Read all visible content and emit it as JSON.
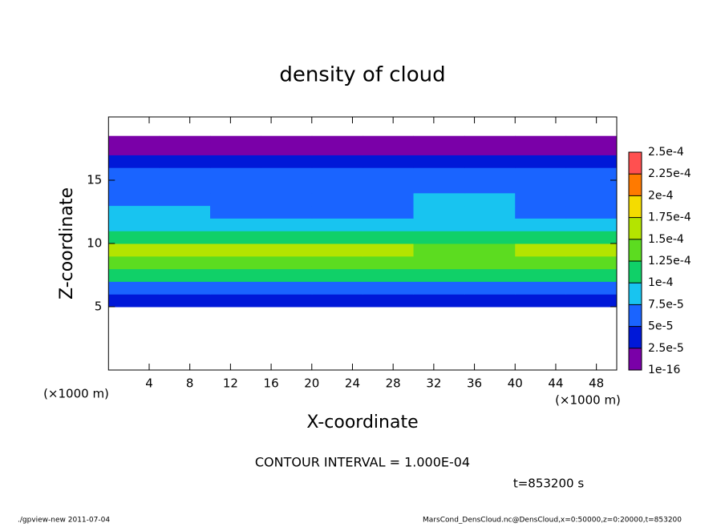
{
  "chart_data": {
    "type": "heatmap",
    "title": "density of cloud",
    "xlabel": "X-coordinate",
    "ylabel": "Z-coordinate",
    "x_unit": "(×1000 m)",
    "y_unit": "(×1000 m)",
    "contour_note": "CONTOUR INTERVAL = 1.000E-04",
    "time_note": "t=853200 s",
    "footer_left": "./gpview-new  2011-07-04",
    "footer_right": "MarsCond_DensCloud.nc@DensCloud,x=0:50000,z=0:20000,t=853200",
    "xlim": [
      0,
      50
    ],
    "xticks": [
      4,
      8,
      12,
      16,
      20,
      24,
      28,
      32,
      36,
      40,
      44,
      48
    ],
    "ylim": [
      0,
      20
    ],
    "yticks": [
      5,
      10,
      15
    ],
    "xbins": [
      0,
      5,
      10,
      15,
      20,
      25,
      30,
      35,
      40,
      45,
      50
    ],
    "ybins": [
      5,
      6,
      7,
      8,
      9,
      10,
      11,
      12,
      13,
      14,
      15,
      16,
      17,
      18,
      18.5
    ],
    "values": [
      [
        3e-05,
        3e-05,
        3e-05,
        3e-05,
        3e-05,
        3e-05,
        3e-05,
        3e-05,
        3e-05,
        3e-05
      ],
      [
        7e-05,
        7e-05,
        7e-05,
        7e-05,
        7e-05,
        7e-05,
        7e-05,
        7e-05,
        7e-05,
        7e-05
      ],
      [
        0.000115,
        0.000115,
        0.000115,
        0.000115,
        0.000115,
        0.000115,
        0.000115,
        0.000115,
        0.000115,
        0.000115
      ],
      [
        0.000145,
        0.000145,
        0.000145,
        0.000145,
        0.000145,
        0.000145,
        0.000145,
        0.000145,
        0.000145,
        0.000145
      ],
      [
        0.000155,
        0.000155,
        0.000155,
        0.00017,
        0.000155,
        0.00017,
        0.00013,
        0.00013,
        0.000155,
        0.000155
      ],
      [
        0.00012,
        0.00012,
        0.00012,
        0.00012,
        0.00012,
        0.00012,
        0.00011,
        0.00011,
        0.00012,
        0.00012
      ],
      [
        8e-05,
        8e-05,
        8e-05,
        8e-05,
        8e-05,
        8e-05,
        9e-05,
        9e-05,
        8e-05,
        8e-05
      ],
      [
        8e-05,
        8e-05,
        6.5e-05,
        6.5e-05,
        6.5e-05,
        6.5e-05,
        8.5e-05,
        8.5e-05,
        6.5e-05,
        6.5e-05
      ],
      [
        6e-05,
        6e-05,
        6e-05,
        6e-05,
        6e-05,
        6e-05,
        8e-05,
        8e-05,
        6e-05,
        6e-05
      ],
      [
        5.5e-05,
        5.5e-05,
        5.5e-05,
        5.5e-05,
        5.5e-05,
        5.5e-05,
        5.5e-05,
        5.5e-05,
        5.5e-05,
        5.5e-05
      ],
      [
        5e-05,
        5e-05,
        5e-05,
        5e-05,
        5e-05,
        5e-05,
        5e-05,
        5e-05,
        5e-05,
        5e-05
      ],
      [
        3e-05,
        3e-05,
        3e-05,
        3e-05,
        3e-05,
        3e-05,
        3e-05,
        3e-05,
        3e-05,
        3e-05
      ],
      [
        1e-05,
        1e-05,
        1e-05,
        1e-05,
        1e-05,
        1e-05,
        1e-05,
        1e-05,
        1e-05,
        1e-05
      ],
      [
        1e-05,
        1e-05,
        1e-05,
        1e-05,
        1e-05,
        1e-05,
        1e-05,
        1e-05,
        1e-05,
        1e-05
      ]
    ],
    "colorbar_ticks": [
      {
        "value": 1e-16,
        "label": "1e-16"
      },
      {
        "value": 2.5e-05,
        "label": "2.5e-5"
      },
      {
        "value": 5e-05,
        "label": "5e-5"
      },
      {
        "value": 7.5e-05,
        "label": "7.5e-5"
      },
      {
        "value": 0.0001,
        "label": "1e-4"
      },
      {
        "value": 0.000125,
        "label": "1.25e-4"
      },
      {
        "value": 0.00015,
        "label": "1.5e-4"
      },
      {
        "value": 0.000175,
        "label": "1.75e-4"
      },
      {
        "value": 0.0002,
        "label": "2e-4"
      },
      {
        "value": 0.000225,
        "label": "2.25e-4"
      },
      {
        "value": 0.00025,
        "label": "2.5e-4"
      }
    ],
    "colors": [
      "#7a00a8",
      "#0018d8",
      "#1a64ff",
      "#18c4f0",
      "#10d068",
      "#5cdc20",
      "#b4e400",
      "#f4dc00",
      "#ff7a00",
      "#ff5050"
    ]
  }
}
